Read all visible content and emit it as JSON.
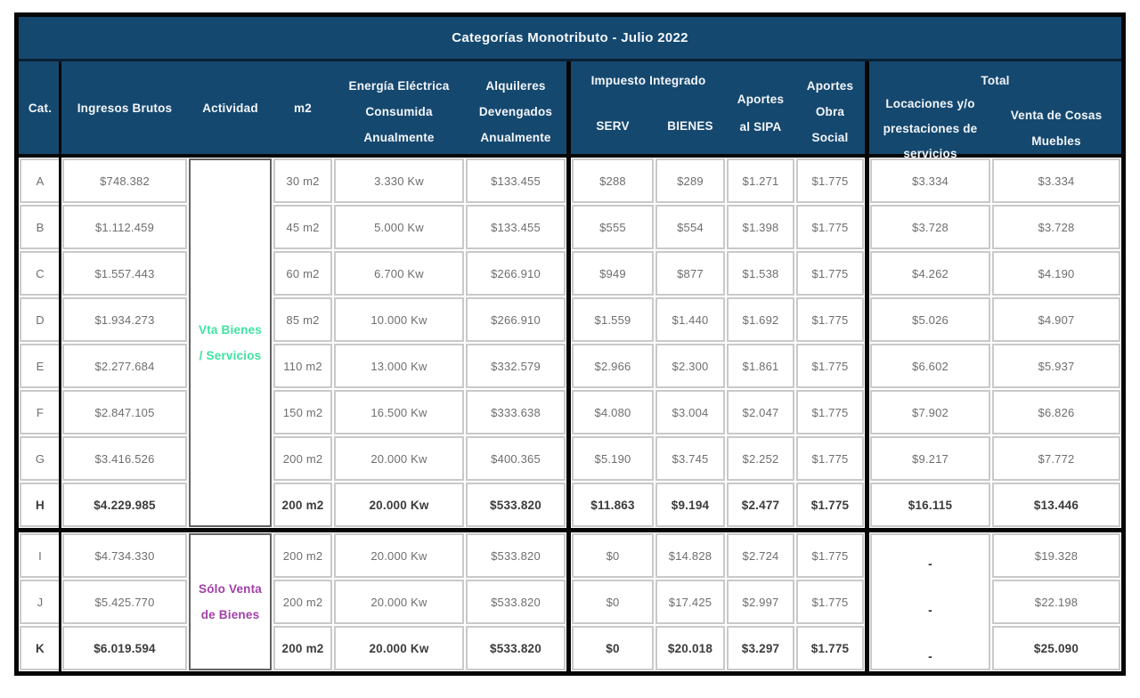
{
  "title": "Categorías Monotributo - Julio 2022",
  "colors": {
    "header_bg": "#15486f",
    "services_text": "#3fe3a1",
    "goods_text": "#a23fa8",
    "cell_border": "#c9c9c9",
    "body_text": "#6e6e6e",
    "bold_text": "#3c3c3c"
  },
  "header": {
    "cat": "Cat.",
    "ingresos": "Ingresos Brutos",
    "actividad": "Actividad",
    "m2": "m2",
    "energia": "Energía Eléctrica\nConsumida\nAnualmente",
    "alquileres": "Alquileres\nDevengados\nAnualmente",
    "impuesto_integrado": "Impuesto Integrado",
    "serv": "SERV",
    "bienes": "BIENES",
    "sipa": "Aportes\nal SIPA",
    "obra_social": "Aportes\nObra\nSocial",
    "total": "Total",
    "locaciones": "Locaciones y/o\nprestaciones de\nservicios",
    "venta_muebles": "Venta de Cosas\nMuebles"
  },
  "chart_data": {
    "type": "table",
    "title": "Categorías Monotributo - Julio 2022",
    "columns": [
      "Cat.",
      "Ingresos Brutos",
      "Actividad",
      "m2",
      "Energía Eléctrica Consumida Anualmente",
      "Alquileres Devengados Anualmente",
      "Impuesto Integrado SERV",
      "Impuesto Integrado BIENES",
      "Aportes al SIPA",
      "Aportes Obra Social",
      "Total Locaciones y/o prestaciones de servicios",
      "Total Venta de Cosas Muebles"
    ],
    "groups": [
      {
        "actividad": "Vta Bienes\n/ Servicios",
        "color_key": "services_text",
        "locaciones_merged": false,
        "rows": [
          {
            "cat": "A",
            "ingresos": "$748.382",
            "m2": "30 m2",
            "energia": "3.330 Kw",
            "alquileres": "$133.455",
            "serv": "$288",
            "bienes": "$289",
            "sipa": "$1.271",
            "obra_social": "$1.775",
            "total_locaciones": "$3.334",
            "total_venta": "$3.334",
            "bold": false
          },
          {
            "cat": "B",
            "ingresos": "$1.112.459",
            "m2": "45 m2",
            "energia": "5.000 Kw",
            "alquileres": "$133.455",
            "serv": "$555",
            "bienes": "$554",
            "sipa": "$1.398",
            "obra_social": "$1.775",
            "total_locaciones": "$3.728",
            "total_venta": "$3.728",
            "bold": false
          },
          {
            "cat": "C",
            "ingresos": "$1.557.443",
            "m2": "60 m2",
            "energia": "6.700 Kw",
            "alquileres": "$266.910",
            "serv": "$949",
            "bienes": "$877",
            "sipa": "$1.538",
            "obra_social": "$1.775",
            "total_locaciones": "$4.262",
            "total_venta": "$4.190",
            "bold": false
          },
          {
            "cat": "D",
            "ingresos": "$1.934.273",
            "m2": "85 m2",
            "energia": "10.000 Kw",
            "alquileres": "$266.910",
            "serv": "$1.559",
            "bienes": "$1.440",
            "sipa": "$1.692",
            "obra_social": "$1.775",
            "total_locaciones": "$5.026",
            "total_venta": "$4.907",
            "bold": false
          },
          {
            "cat": "E",
            "ingresos": "$2.277.684",
            "m2": "110 m2",
            "energia": "13.000 Kw",
            "alquileres": "$332.579",
            "serv": "$2.966",
            "bienes": "$2.300",
            "sipa": "$1.861",
            "obra_social": "$1.775",
            "total_locaciones": "$6.602",
            "total_venta": "$5.937",
            "bold": false
          },
          {
            "cat": "F",
            "ingresos": "$2.847.105",
            "m2": "150 m2",
            "energia": "16.500 Kw",
            "alquileres": "$333.638",
            "serv": "$4.080",
            "bienes": "$3.004",
            "sipa": "$2.047",
            "obra_social": "$1.775",
            "total_locaciones": "$7.902",
            "total_venta": "$6.826",
            "bold": false
          },
          {
            "cat": "G",
            "ingresos": "$3.416.526",
            "m2": "200 m2",
            "energia": "20.000 Kw",
            "alquileres": "$400.365",
            "serv": "$5.190",
            "bienes": "$3.745",
            "sipa": "$2.252",
            "obra_social": "$1.775",
            "total_locaciones": "$9.217",
            "total_venta": "$7.772",
            "bold": false
          },
          {
            "cat": "H",
            "ingresos": "$4.229.985",
            "m2": "200 m2",
            "energia": "20.000 Kw",
            "alquileres": "$533.820",
            "serv": "$11.863",
            "bienes": "$9.194",
            "sipa": "$2.477",
            "obra_social": "$1.775",
            "total_locaciones": "$16.115",
            "total_venta": "$13.446",
            "bold": true
          }
        ]
      },
      {
        "actividad": "Sólo Venta\nde Bienes",
        "color_key": "goods_text",
        "locaciones_merged": true,
        "rows": [
          {
            "cat": "I",
            "ingresos": "$4.734.330",
            "m2": "200 m2",
            "energia": "20.000 Kw",
            "alquileres": "$533.820",
            "serv": "$0",
            "bienes": "$14.828",
            "sipa": "$2.724",
            "obra_social": "$1.775",
            "total_locaciones": "-",
            "total_venta": "$19.328",
            "bold": false
          },
          {
            "cat": "J",
            "ingresos": "$5.425.770",
            "m2": "200 m2",
            "energia": "20.000 Kw",
            "alquileres": "$533.820",
            "serv": "$0",
            "bienes": "$17.425",
            "sipa": "$2.997",
            "obra_social": "$1.775",
            "total_locaciones": "-",
            "total_venta": "$22.198",
            "bold": false
          },
          {
            "cat": "K",
            "ingresos": "$6.019.594",
            "m2": "200 m2",
            "energia": "20.000 Kw",
            "alquileres": "$533.820",
            "serv": "$0",
            "bienes": "$20.018",
            "sipa": "$3.297",
            "obra_social": "$1.775",
            "total_locaciones": "-",
            "total_venta": "$25.090",
            "bold": true
          }
        ]
      }
    ]
  }
}
